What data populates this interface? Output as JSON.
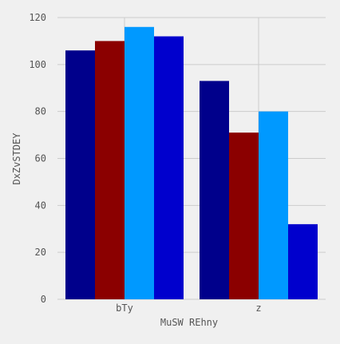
{
  "chart_data": {
    "type": "bar",
    "title": "",
    "xlabel": "MuSW REhny",
    "ylabel": "DxZvSTDEY",
    "categories": [
      "bTy",
      "z"
    ],
    "series": [
      {
        "color": "#00008b",
        "values": [
          106,
          93
        ]
      },
      {
        "color": "#8b0000",
        "values": [
          110,
          71
        ]
      },
      {
        "color": "#0099ff",
        "values": [
          116,
          80
        ]
      },
      {
        "color": "#0000cd",
        "values": [
          112,
          32
        ]
      }
    ],
    "ylim": [
      0,
      120
    ],
    "yticks": [
      0,
      20,
      40,
      60,
      80,
      100,
      120
    ],
    "grid": true,
    "background": "#f0f0f0",
    "grid_color": "#cccccc"
  }
}
